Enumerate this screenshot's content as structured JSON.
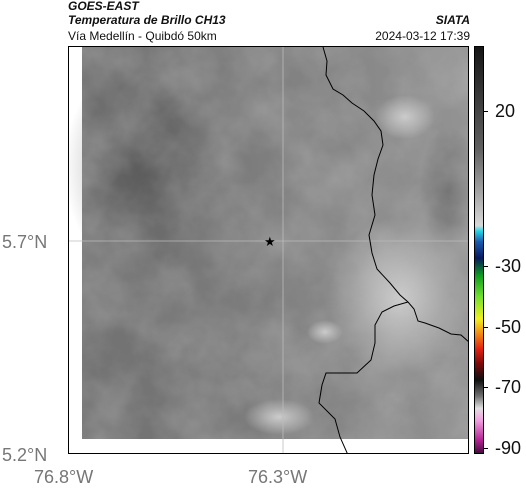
{
  "header": {
    "satellite": "GOES-EAST",
    "product": "Temperatura de Brillo CH13",
    "route": "Vía Medellín - Quibdó 50km",
    "organization": "SIATA",
    "timestamp": "2024-03-12 17:39"
  },
  "map": {
    "lat_ticks": [
      "5.7°N",
      "5.2°N"
    ],
    "lon_ticks": [
      "76.8°W",
      "76.3°W"
    ],
    "marker_icon": "star-icon",
    "grid": true
  },
  "colorbar": {
    "ticks": [
      "20",
      "-30",
      "-50",
      "-70",
      "-90"
    ]
  }
}
